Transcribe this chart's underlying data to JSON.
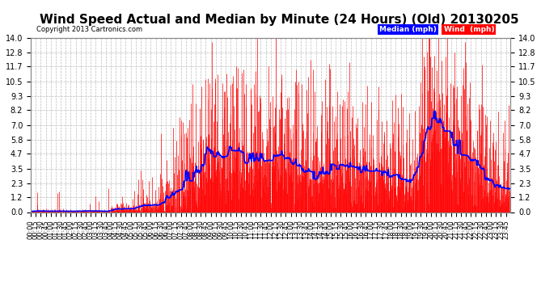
{
  "title": "Wind Speed Actual and Median by Minute (24 Hours) (Old) 20130205",
  "copyright": "Copyright 2013 Cartronics.com",
  "yticks": [
    0.0,
    1.2,
    2.3,
    3.5,
    4.7,
    5.8,
    7.0,
    8.2,
    9.3,
    10.5,
    11.7,
    12.8,
    14.0
  ],
  "ylim": [
    0.0,
    14.0
  ],
  "bg_color": "#ffffff",
  "grid_color": "#bbbbbb",
  "wind_color": "#ff0000",
  "median_color": "#0000ff",
  "legend_median_bg": "#0000ff",
  "legend_wind_bg": "#ff0000",
  "title_fontsize": 11,
  "axis_fontsize": 7
}
